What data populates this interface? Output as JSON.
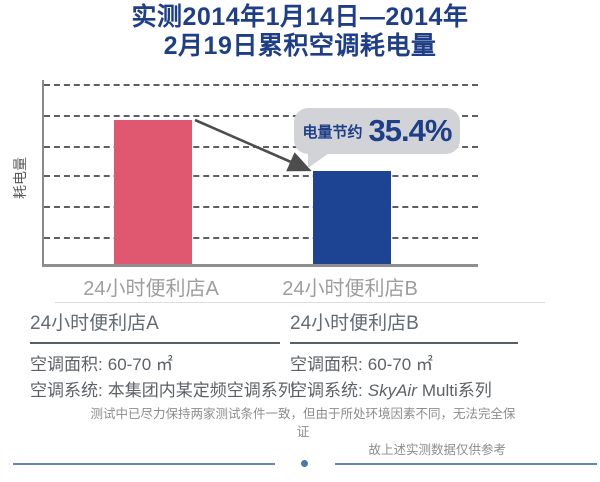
{
  "title": {
    "line1": "实测2014年1月14日—2014年",
    "line2": "2月19日累积空调耗电量",
    "color": "#1e3f87"
  },
  "chart_data": {
    "type": "bar",
    "title": "实测2014年1月14日—2014年2月19日累积空调耗电量",
    "ylabel": "耗电量",
    "xlabel": "",
    "categories": [
      "24小时便利店A",
      "24小时便利店B"
    ],
    "values": [
      100,
      64.6
    ],
    "values_note": "no numeric y-ticks shown; relative scale with store A = 100, store B reflects the stated 35.4% saving",
    "ylim": [
      0,
      125
    ],
    "grid": "6 horizontal dashed gray gridlines, unlabeled",
    "legend": "none",
    "bar_colors": [
      "#e05870",
      "#1c4493"
    ],
    "annotation": {
      "label": "电量节约",
      "value": "35.4%",
      "target": "24小时便利店B"
    }
  },
  "callout": {
    "label": "电量节约",
    "value": "35.4%",
    "bubble_color": "#d2d3d7",
    "text_color": "#1e3f87"
  },
  "stores": [
    {
      "name": "24小时便利店A",
      "area_label": "空调面积:",
      "area_value": "60-70 ㎡",
      "system_label": "空调系统:",
      "system_value_italic": "",
      "system_value": "本集团内某定频空调系列"
    },
    {
      "name": "24小时便利店B",
      "area_label": "空调面积:",
      "area_value": "60-70 ㎡",
      "system_label": "空调系统:",
      "system_value_italic": "SkyAir",
      "system_value": "Multi系列"
    }
  ],
  "note": {
    "line1": "测试中已尽力保持两家测试条件一致，但由于所处环境因素不同，无法完全保证",
    "line2": "故上述实测数据仅供参考"
  }
}
